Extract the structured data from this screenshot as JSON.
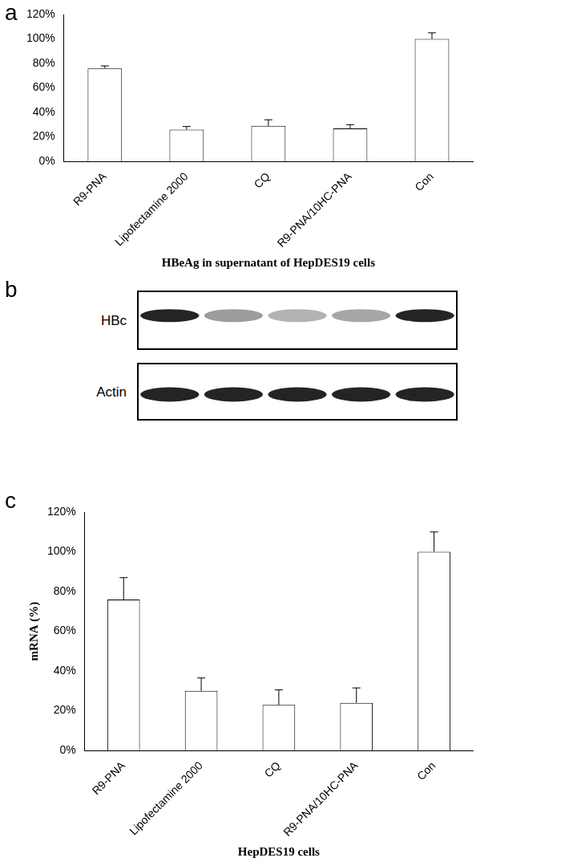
{
  "chart_data": [
    {
      "type": "bar",
      "panel": "a",
      "x_label": "HBeAg in supernatant of HepDES19 cells",
      "categories": [
        "R9-PNA",
        "Lipofectamine 2000",
        "CQ",
        "R9-PNA/10HC-PNA",
        "Con"
      ],
      "values": [
        76,
        26,
        29,
        27,
        100
      ],
      "errors": [
        2,
        2.5,
        5,
        3,
        5
      ],
      "color": "#ffffff",
      "ylim": [
        0,
        120
      ],
      "yticks": [
        {
          "value": 0,
          "label": "0%"
        },
        {
          "value": 20,
          "label": "20%"
        },
        {
          "value": 40,
          "label": "40%"
        },
        {
          "value": 60,
          "label": "60%"
        },
        {
          "value": 80,
          "label": "80%"
        },
        {
          "value": 100,
          "label": "100%"
        },
        {
          "value": 120,
          "label": "120%"
        }
      ],
      "grid": false
    },
    {
      "type": "blot",
      "panel": "b",
      "rows": [
        {
          "name": "HBc",
          "values": [
            1,
            0.45,
            0.35,
            0.4,
            1
          ]
        },
        {
          "name": "Actin",
          "values": [
            1,
            1,
            1,
            1,
            1
          ]
        }
      ]
    },
    {
      "type": "bar",
      "panel": "c",
      "x_label": "HepDES19 cells",
      "y_label": "mRNA (%)",
      "categories": [
        "R9-PNA",
        "Lipofectamine 2000",
        "CQ",
        "R9-PNA/10HC-PNA",
        "Con"
      ],
      "values": [
        76,
        30,
        23,
        24,
        100
      ],
      "errors": [
        11,
        6.5,
        7.5,
        7.5,
        10
      ],
      "color": "#ffffff",
      "ylim": [
        0,
        120
      ],
      "yticks": [
        {
          "value": 0,
          "label": "0%"
        },
        {
          "value": 20,
          "label": "20%"
        },
        {
          "value": 40,
          "label": "40%"
        },
        {
          "value": 60,
          "label": "60%"
        },
        {
          "value": 80,
          "label": "80%"
        },
        {
          "value": 100,
          "label": "100%"
        },
        {
          "value": 120,
          "label": "120%"
        }
      ],
      "grid": false
    }
  ]
}
